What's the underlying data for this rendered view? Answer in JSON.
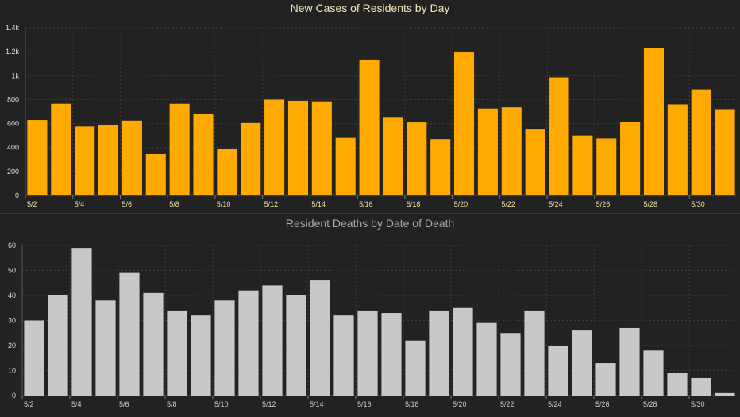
{
  "chart_data": [
    {
      "type": "bar",
      "title": "New Cases of Residents by Day",
      "categories": [
        "5/2",
        "5/3",
        "5/4",
        "5/5",
        "5/6",
        "5/7",
        "5/8",
        "5/9",
        "5/10",
        "5/11",
        "5/12",
        "5/13",
        "5/14",
        "5/15",
        "5/16",
        "5/17",
        "5/18",
        "5/19",
        "5/20",
        "5/21",
        "5/22",
        "5/23",
        "5/24",
        "5/25",
        "5/26",
        "5/27",
        "5/28",
        "5/29",
        "5/30",
        "5/31"
      ],
      "values": [
        630,
        765,
        575,
        585,
        625,
        345,
        765,
        680,
        385,
        605,
        800,
        790,
        785,
        480,
        1135,
        655,
        610,
        470,
        1195,
        725,
        735,
        550,
        985,
        500,
        475,
        615,
        1230,
        760,
        885,
        720
      ],
      "ylim": [
        0,
        1400
      ],
      "yticks": [
        0,
        200,
        400,
        600,
        800,
        1000,
        1200,
        1400
      ],
      "ytick_labels": [
        "0",
        "200",
        "400",
        "600",
        "800",
        "1k",
        "1.2k",
        "1.4k"
      ],
      "xtick_labels": [
        "5/2",
        "5/4",
        "5/6",
        "5/8",
        "5/10",
        "5/12",
        "5/14",
        "5/16",
        "5/18",
        "5/20",
        "5/22",
        "5/24",
        "5/26",
        "5/28",
        "5/30"
      ],
      "bar_color": "#ffaa00",
      "grid": true,
      "legend": "none"
    },
    {
      "type": "bar",
      "title": "Resident Deaths by Date of Death",
      "categories": [
        "5/2",
        "5/3",
        "5/4",
        "5/5",
        "5/6",
        "5/7",
        "5/8",
        "5/9",
        "5/10",
        "5/11",
        "5/12",
        "5/13",
        "5/14",
        "5/15",
        "5/16",
        "5/17",
        "5/18",
        "5/19",
        "5/20",
        "5/21",
        "5/22",
        "5/23",
        "5/24",
        "5/25",
        "5/26",
        "5/27",
        "5/28",
        "5/29",
        "5/30",
        "5/31"
      ],
      "values": [
        30,
        40,
        59,
        38,
        49,
        41,
        34,
        32,
        38,
        42,
        44,
        40,
        46,
        32,
        34,
        33,
        22,
        34,
        35,
        29,
        25,
        34,
        20,
        26,
        13,
        27,
        18,
        9,
        7,
        1
      ],
      "ylim": [
        0,
        60
      ],
      "yticks": [
        0,
        10,
        20,
        30,
        40,
        50,
        60
      ],
      "ytick_labels": [
        "0",
        "10",
        "20",
        "30",
        "40",
        "50",
        "60"
      ],
      "xtick_labels": [
        "5/2",
        "5/4",
        "5/6",
        "5/8",
        "5/10",
        "5/12",
        "5/14",
        "5/16",
        "5/18",
        "5/20",
        "5/22",
        "5/24",
        "5/26",
        "5/28",
        "5/30"
      ],
      "bar_color": "#c8c8c8",
      "grid": true,
      "legend": "none"
    }
  ]
}
